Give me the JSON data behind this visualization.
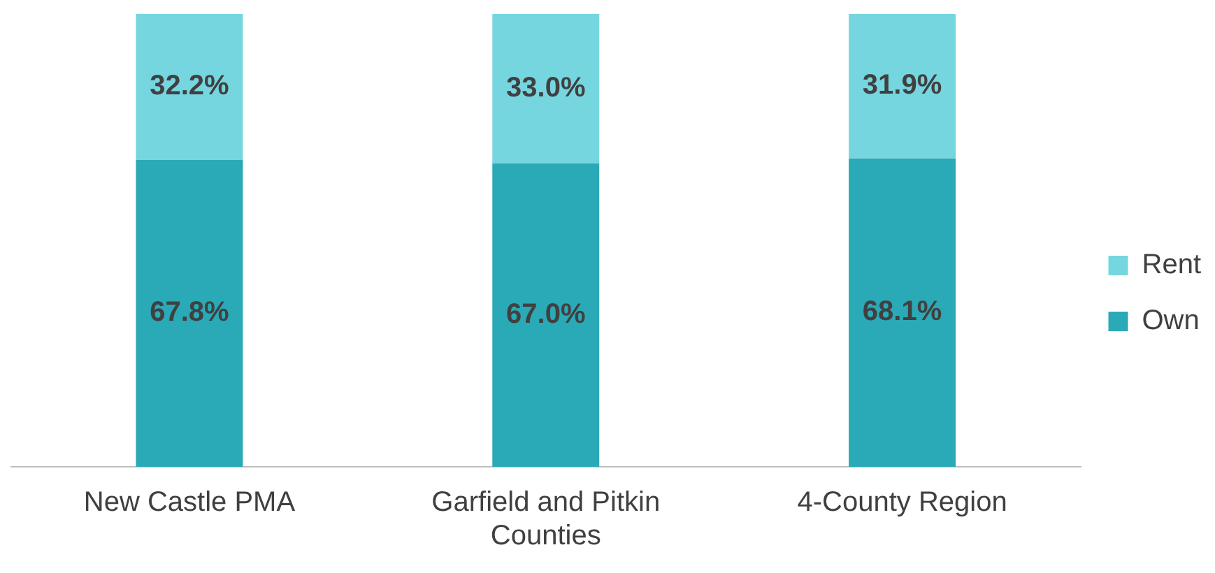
{
  "chart_data": {
    "type": "bar",
    "stacked": true,
    "categories": [
      "New Castle PMA",
      "Garfield and Pitkin Counties",
      "4-County Region"
    ],
    "series": [
      {
        "name": "Own",
        "color": "#2aa9b7",
        "values": [
          67.8,
          67.0,
          68.1
        ],
        "value_labels": [
          "67.8%",
          "67.0%",
          "68.1%"
        ]
      },
      {
        "name": "Rent",
        "color": "#76d6e0",
        "values": [
          32.2,
          33.0,
          31.9
        ],
        "value_labels": [
          "32.2%",
          "33.0%",
          "31.9%"
        ]
      }
    ],
    "ylim": [
      0,
      100
    ],
    "tick_labels": "x",
    "grid": false,
    "legend": "right"
  }
}
